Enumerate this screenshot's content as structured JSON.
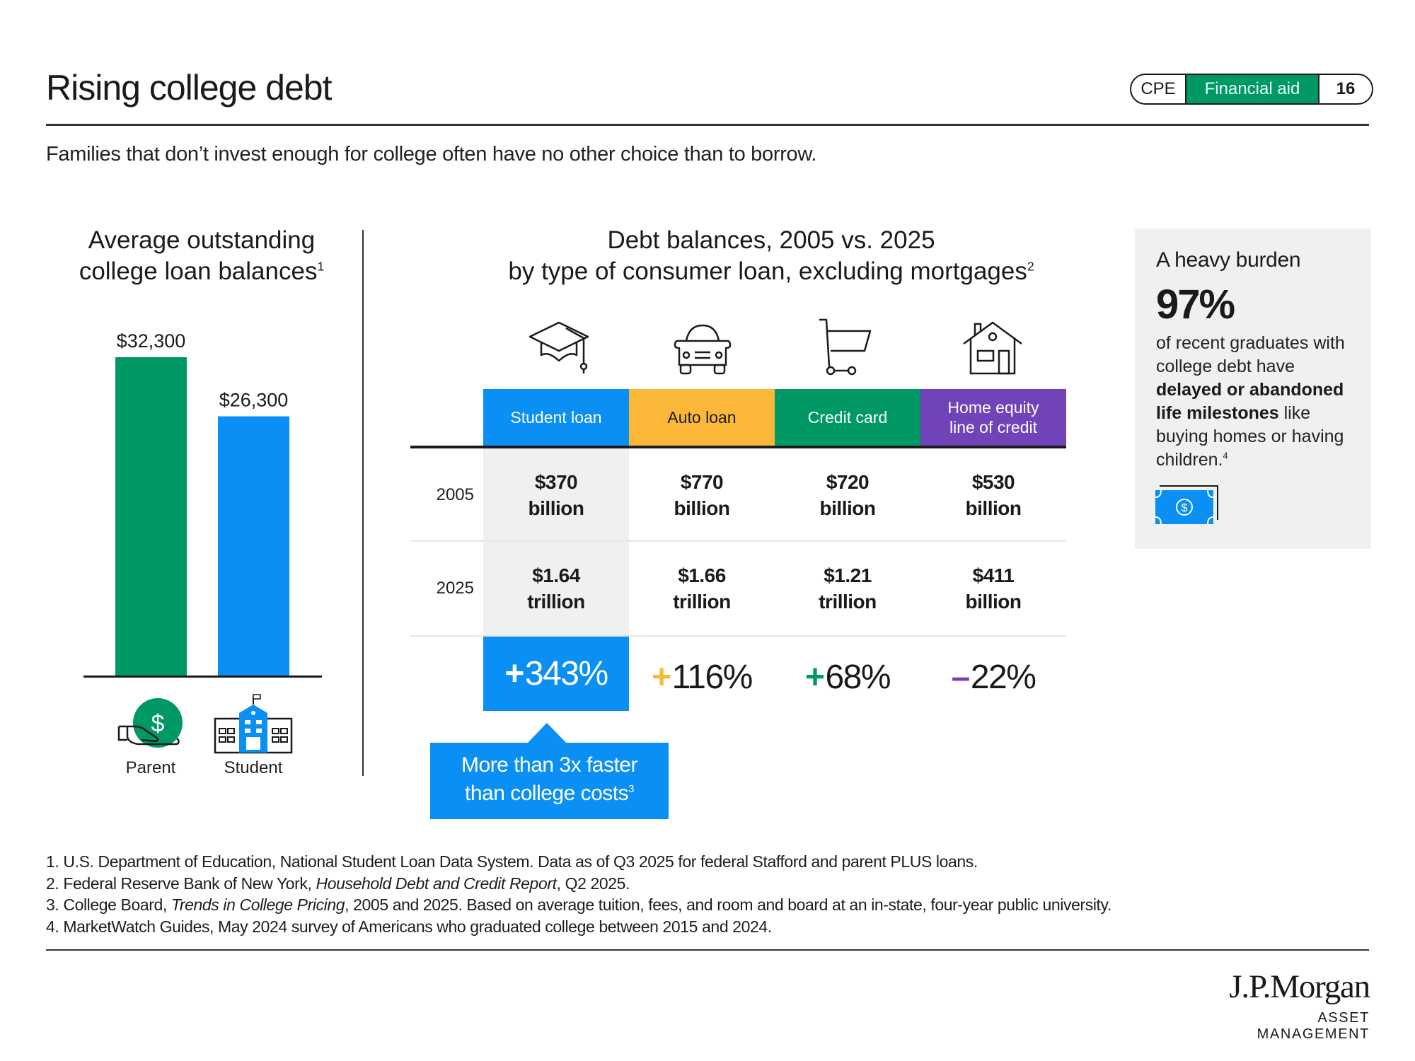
{
  "header": {
    "title": "Rising college debt",
    "subtitle": "Families that don’t invest enough for college often have no other choice than to borrow.",
    "pill": {
      "section_code": "CPE",
      "section_name": "Financial aid",
      "page_number": "16"
    }
  },
  "colors": {
    "green": "#009966",
    "blue": "#0a8ff5",
    "yellow": "#fbb838",
    "purple": "#7043b8",
    "shade": "#eff1f1"
  },
  "left_panel": {
    "title_line1": "Average outstanding",
    "title_line2": "college loan balances",
    "footnote_ref": "1",
    "labels": [
      "Parent",
      "Student"
    ]
  },
  "middle_panel": {
    "title": "Debt balances, 2005 vs. 2025",
    "subtitle": "by type of consumer loan, excluding mortgages",
    "footnote_ref": "2",
    "columns": [
      {
        "label": "Student loan",
        "icon": "graduation-cap-icon",
        "color": "#0a8ff5",
        "text_color": "#ffffff"
      },
      {
        "label": "Auto loan",
        "icon": "car-icon",
        "color": "#fbb838",
        "text_color": "#1a1a1a"
      },
      {
        "label": "Credit card",
        "icon": "shopping-cart-icon",
        "color": "#009966",
        "text_color": "#ffffff"
      },
      {
        "label_line1": "Home equity",
        "label_line2": "line of credit",
        "icon": "house-icon",
        "color": "#7043b8",
        "text_color": "#ffffff"
      }
    ],
    "rows": [
      {
        "year": "2005",
        "values": [
          {
            "amount": "$370",
            "unit": "billion"
          },
          {
            "amount": "$770",
            "unit": "billion"
          },
          {
            "amount": "$720",
            "unit": "billion"
          },
          {
            "amount": "$530",
            "unit": "billion"
          }
        ]
      },
      {
        "year": "2025",
        "values": [
          {
            "amount": "$1.64",
            "unit": "trillion"
          },
          {
            "amount": "$1.66",
            "unit": "trillion"
          },
          {
            "amount": "$1.21",
            "unit": "trillion"
          },
          {
            "amount": "$411",
            "unit": "billion"
          }
        ]
      }
    ],
    "changes": [
      {
        "sign": "+",
        "value": "343%",
        "sign_color": "#ffffff"
      },
      {
        "sign": "+",
        "value": "116%",
        "sign_color": "#fbb838"
      },
      {
        "sign": "+",
        "value": "68%",
        "sign_color": "#009966"
      },
      {
        "sign": "–",
        "value": "22%",
        "sign_color": "#7043b8"
      }
    ],
    "callout_line1": "More than 3x faster",
    "callout_line2": "than college costs",
    "callout_ref": "3"
  },
  "burden_box": {
    "title": "A heavy burden",
    "stat": "97%",
    "text_1": "of recent graduates with college debt have ",
    "text_bold": "delayed or abandoned life milestones",
    "text_2": " like buying homes or having children.",
    "footnote_ref": "4"
  },
  "footnotes": {
    "f1": "1. U.S. Department of Education, National Student Loan Data System. Data as of Q3 2025 for federal Stafford and parent PLUS loans.",
    "f2_pre": "2. Federal Reserve Bank of New York, ",
    "f2_ital": "Household Debt and Credit Report",
    "f2_post": ", Q2 2025.",
    "f3_pre": "3. College Board, ",
    "f3_ital": "Trends in College Pricing",
    "f3_post": ", 2005 and 2025. Based on average tuition, fees, and room and board at an in-state, four-year public university.",
    "f4": "4. MarketWatch Guides, May 2024 survey of Americans who graduated college between 2015 and 2024."
  },
  "logo": {
    "main": "J.P.Morgan",
    "sub": "ASSET MANAGEMENT"
  },
  "chart_data": [
    {
      "type": "bar",
      "title": "Average outstanding college loan balances",
      "categories": [
        "Parent",
        "Student"
      ],
      "values": [
        32300,
        26300
      ],
      "value_labels": [
        "$32,300",
        "$26,300"
      ],
      "colors": [
        "#009966",
        "#0a8ff5"
      ],
      "xlabel": "",
      "ylabel": "",
      "ylim": [
        0,
        32300
      ],
      "grid": false,
      "legend": "none"
    },
    {
      "type": "table",
      "title": "Debt balances, 2005 vs. 2025",
      "subtitle": "by type of consumer loan, excluding mortgages",
      "categories": [
        "Student loan",
        "Auto loan",
        "Credit card",
        "Home equity line of credit"
      ],
      "series": [
        {
          "name": "2005",
          "values_billions": [
            370,
            770,
            720,
            530
          ]
        },
        {
          "name": "2025",
          "values_billions": [
            1640,
            1660,
            1210,
            411
          ]
        }
      ],
      "percent_change": [
        343,
        116,
        68,
        -22
      ]
    }
  ]
}
